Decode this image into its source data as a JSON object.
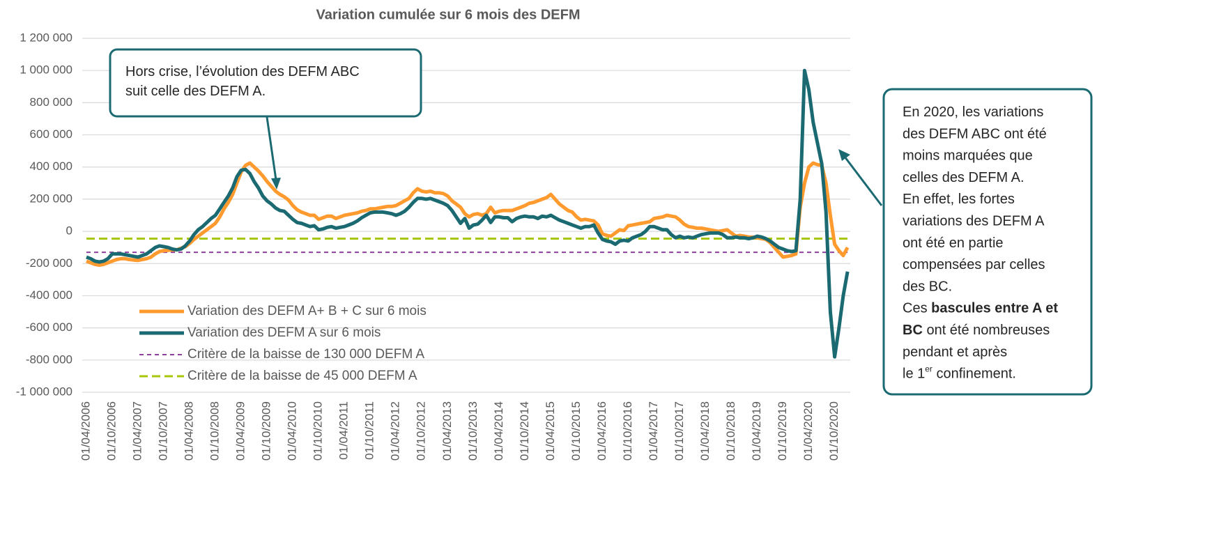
{
  "chart_data": {
    "type": "line",
    "title": "Variation cumulée sur 6 mois des DEFM",
    "categories": [
      "01/04/2006",
      null,
      null,
      null,
      null,
      null,
      "01/10/2006",
      null,
      null,
      null,
      null,
      null,
      "01/04/2007",
      null,
      null,
      null,
      null,
      null,
      "01/10/2007",
      null,
      null,
      null,
      null,
      null,
      "01/04/2008",
      null,
      null,
      null,
      null,
      null,
      "01/10/2008",
      null,
      null,
      null,
      null,
      null,
      "01/04/2009",
      null,
      null,
      null,
      null,
      null,
      "01/10/2009",
      null,
      null,
      null,
      null,
      null,
      "01/04/2010",
      null,
      null,
      null,
      null,
      null,
      "01/10/2010",
      null,
      null,
      null,
      null,
      null,
      "01/04/2011",
      null,
      null,
      null,
      null,
      null,
      "01/10/2011",
      null,
      null,
      null,
      null,
      null,
      "01/04/2012",
      null,
      null,
      null,
      null,
      null,
      "01/10/2012",
      null,
      null,
      null,
      null,
      null,
      "01/04/2013",
      null,
      null,
      null,
      null,
      null,
      "01/10/2013",
      null,
      null,
      null,
      null,
      null,
      "01/04/2014",
      null,
      null,
      null,
      null,
      null,
      "01/10/2014",
      null,
      null,
      null,
      null,
      null,
      "01/04/2015",
      null,
      null,
      null,
      null,
      null,
      "01/10/2015",
      null,
      null,
      null,
      null,
      null,
      "01/04/2016",
      null,
      null,
      null,
      null,
      null,
      "01/10/2016",
      null,
      null,
      null,
      null,
      null,
      "01/04/2017",
      null,
      null,
      null,
      null,
      null,
      "01/10/2017",
      null,
      null,
      null,
      null,
      null,
      "01/04/2018",
      null,
      null,
      null,
      null,
      null,
      "01/10/2018",
      null,
      null,
      null,
      null,
      null,
      "01/04/2019",
      null,
      null,
      null,
      null,
      null,
      "01/10/2019",
      null,
      null,
      null,
      null,
      null,
      "01/04/2020",
      null,
      null,
      null,
      null,
      null,
      "01/10/2020",
      null,
      null,
      null
    ],
    "series": [
      {
        "name": "Variation des DEFM A+ B + C sur 6 mois",
        "color": "#ff9a2e",
        "values": [
          -185000,
          -195000,
          -205000,
          -210000,
          -205000,
          -195000,
          -185000,
          -175000,
          -170000,
          -170000,
          -175000,
          -178000,
          -180000,
          -175000,
          -170000,
          -160000,
          -140000,
          -125000,
          -120000,
          -118000,
          -115000,
          -115000,
          -105000,
          -95000,
          -75000,
          -50000,
          -30000,
          -10000,
          10000,
          30000,
          50000,
          90000,
          140000,
          180000,
          230000,
          300000,
          370000,
          410000,
          425000,
          400000,
          375000,
          345000,
          310000,
          280000,
          250000,
          230000,
          215000,
          195000,
          160000,
          135000,
          120000,
          110000,
          100000,
          100000,
          75000,
          85000,
          95000,
          95000,
          80000,
          90000,
          100000,
          105000,
          110000,
          115000,
          125000,
          130000,
          140000,
          140000,
          145000,
          150000,
          155000,
          155000,
          160000,
          175000,
          190000,
          205000,
          240000,
          265000,
          250000,
          245000,
          250000,
          240000,
          240000,
          235000,
          220000,
          190000,
          170000,
          150000,
          110000,
          90000,
          105000,
          110000,
          100000,
          110000,
          150000,
          115000,
          125000,
          130000,
          130000,
          130000,
          140000,
          150000,
          160000,
          175000,
          180000,
          190000,
          200000,
          210000,
          230000,
          200000,
          170000,
          150000,
          130000,
          120000,
          90000,
          70000,
          75000,
          70000,
          65000,
          40000,
          -15000,
          -25000,
          -30000,
          -10000,
          10000,
          5000,
          35000,
          40000,
          45000,
          50000,
          55000,
          60000,
          80000,
          85000,
          90000,
          100000,
          95000,
          90000,
          70000,
          45000,
          30000,
          25000,
          20000,
          20000,
          15000,
          10000,
          5000,
          0,
          5000,
          10000,
          -10000,
          -30000,
          -25000,
          -30000,
          -35000,
          -35000,
          -40000,
          -45000,
          -50000,
          -70000,
          -100000,
          -130000,
          -160000,
          -155000,
          -150000,
          -140000,
          150000,
          300000,
          400000,
          425000,
          415000,
          410000,
          300000,
          100000,
          -80000,
          -120000,
          -150000,
          -100000
        ]
      },
      {
        "name": "Variation des DEFM A sur 6 mois",
        "color": "#1b6a72",
        "values": [
          -160000,
          -170000,
          -185000,
          -190000,
          -185000,
          -170000,
          -140000,
          -140000,
          -140000,
          -145000,
          -150000,
          -155000,
          -160000,
          -150000,
          -140000,
          -120000,
          -100000,
          -90000,
          -95000,
          -100000,
          -110000,
          -115000,
          -110000,
          -90000,
          -60000,
          -20000,
          10000,
          30000,
          55000,
          80000,
          100000,
          140000,
          180000,
          220000,
          270000,
          340000,
          380000,
          385000,
          360000,
          310000,
          270000,
          220000,
          190000,
          170000,
          145000,
          130000,
          125000,
          100000,
          75000,
          55000,
          50000,
          40000,
          30000,
          35000,
          10000,
          15000,
          25000,
          30000,
          20000,
          25000,
          30000,
          40000,
          50000,
          65000,
          85000,
          100000,
          115000,
          120000,
          120000,
          120000,
          115000,
          110000,
          100000,
          110000,
          125000,
          150000,
          180000,
          205000,
          205000,
          200000,
          205000,
          195000,
          185000,
          175000,
          160000,
          130000,
          90000,
          50000,
          80000,
          20000,
          40000,
          45000,
          70000,
          100000,
          55000,
          90000,
          90000,
          85000,
          85000,
          60000,
          80000,
          90000,
          95000,
          90000,
          90000,
          80000,
          95000,
          90000,
          100000,
          85000,
          70000,
          60000,
          50000,
          40000,
          30000,
          20000,
          30000,
          30000,
          40000,
          -10000,
          -50000,
          -60000,
          -65000,
          -80000,
          -60000,
          -55000,
          -60000,
          -40000,
          -30000,
          -20000,
          0,
          30000,
          30000,
          20000,
          10000,
          10000,
          -20000,
          -40000,
          -30000,
          -40000,
          -35000,
          -40000,
          -30000,
          -20000,
          -15000,
          -10000,
          -10000,
          -10000,
          -20000,
          -40000,
          -40000,
          -35000,
          -40000,
          -40000,
          -45000,
          -40000,
          -30000,
          -35000,
          -45000,
          -60000,
          -80000,
          -100000,
          -110000,
          -120000,
          -125000,
          -120000,
          200000,
          1000000,
          880000,
          680000,
          550000,
          420000,
          120000,
          -500000,
          -780000,
          -600000,
          -400000,
          -250000
        ]
      }
    ],
    "reference_lines": [
      {
        "name": "Critère de la baisse de 130 000 DEFM A",
        "color": "#8e3f9e",
        "value": -130000
      },
      {
        "name": "Critère de la baisse de 45 000 DEFM A",
        "color": "#a8c60a",
        "value": -45000
      }
    ],
    "ylim": [
      -1000000,
      1200000
    ],
    "yticks": [
      {
        "value": -1000000,
        "label": "-1 000 000"
      },
      {
        "value": -800000,
        "label": "-800 000"
      },
      {
        "value": -600000,
        "label": "-600 000"
      },
      {
        "value": -400000,
        "label": "-400 000"
      },
      {
        "value": -200000,
        "label": "-200 000"
      },
      0,
      {
        "value": 200000,
        "label": "200 000"
      },
      {
        "value": 400000,
        "label": "400 000"
      },
      {
        "value": 600000,
        "label": "600 000"
      },
      {
        "value": 800000,
        "label": "800 000"
      },
      {
        "value": 1000000,
        "label": "1 000 000"
      },
      {
        "value": 1200000,
        "label": "1 200 000"
      }
    ],
    "grid": true,
    "legend": "lower left",
    "annotations": [
      {
        "lines": [
          [
            "Hors crise, l’évolution des DEFM ABC"
          ],
          [
            "suit celle des DEFM A."
          ]
        ]
      },
      {
        "lines": [
          [
            "En 2020, les variations"
          ],
          [
            "des DEFM ABC ont été"
          ],
          [
            "moins marquées que"
          ],
          [
            "celles des DEFM A."
          ],
          [
            "En effet, les fortes"
          ],
          [
            "variations des DEFM A"
          ],
          [
            "ont été en partie"
          ],
          [
            "compensées par celles"
          ],
          [
            "des BC."
          ],
          [
            "Ces ",
            {
              "text": "bascules entre A et",
              "bold": true
            }
          ],
          [
            {
              "text": "BC",
              "bold": true
            },
            " ont été nombreuses"
          ],
          [
            "pendant et après"
          ],
          [
            "le 1",
            {
              "text": "er",
              "sup": true
            },
            " confinement."
          ]
        ]
      }
    ]
  }
}
